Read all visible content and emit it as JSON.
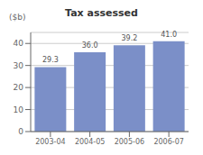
{
  "chart_data": {
    "type": "bar",
    "title": "Tax assessed",
    "ylabel": "($b)",
    "categories": [
      "2003-04",
      "2004-05",
      "2005-06",
      "2006-07"
    ],
    "values": [
      29.3,
      36.0,
      39.2,
      41.0
    ],
    "value_labels": [
      "29.3",
      "36.0",
      "39.2",
      "41.0"
    ],
    "color": "#7b8fc8",
    "ylim": [
      0,
      45
    ],
    "yticks": [
      0,
      10,
      20,
      30,
      40
    ],
    "grid": true,
    "data_labels": true
  }
}
